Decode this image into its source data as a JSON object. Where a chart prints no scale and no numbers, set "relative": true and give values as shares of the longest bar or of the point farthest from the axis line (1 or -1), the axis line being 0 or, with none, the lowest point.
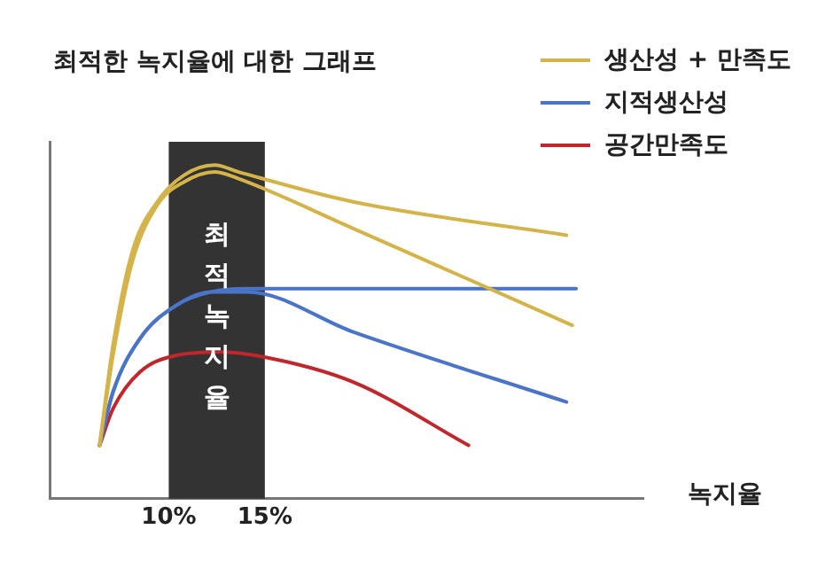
{
  "chart_data": {
    "type": "line",
    "title": "최적한 녹지율에 대한 그래프",
    "xlabel": "녹지율",
    "relative": true,
    "xlim": [
      3.8,
      34.7
    ],
    "xticks": [
      {
        "value": 10,
        "label": "10%"
      },
      {
        "value": 15,
        "label": "15%"
      }
    ],
    "tick_labels": "x",
    "grid": false,
    "legend": "top right",
    "marker": "none",
    "line_style": "solid",
    "bands": [
      {
        "axis": "x",
        "from": 10,
        "to": 15,
        "label": "최적 녹지율",
        "color": "#333333"
      }
    ],
    "series": [
      {
        "name": "생산성 + 만족도",
        "color": "#d4b44a",
        "x": [
          6.4,
          7.1,
          8.1,
          9.4,
          10.8,
          12.4,
          13.6,
          19.6,
          30.7
        ],
        "values": [
          0.16,
          0.46,
          0.74,
          0.89,
          0.97,
          1.0,
          0.98,
          0.89,
          0.79
        ]
      },
      {
        "color": "#d4b44a",
        "x": [
          6.4,
          7.1,
          8.1,
          9.4,
          10.8,
          12.4,
          13.6,
          19.6,
          31
        ],
        "values": [
          0.16,
          0.43,
          0.71,
          0.88,
          0.95,
          0.98,
          0.96,
          0.81,
          0.52
        ]
      },
      {
        "name": "지적생산성",
        "color": "#4a74c8",
        "x": [
          6.4,
          7.1,
          8.5,
          10.4,
          12.2,
          14.1,
          31.2
        ],
        "values": [
          0.16,
          0.32,
          0.48,
          0.58,
          0.62,
          0.63,
          0.63
        ]
      },
      {
        "color": "#4a74c8",
        "x": [
          6.4,
          7.1,
          8.5,
          10.4,
          12.2,
          14.1,
          19.6,
          30.7
        ],
        "values": [
          0.16,
          0.32,
          0.48,
          0.58,
          0.62,
          0.62,
          0.5,
          0.29
        ]
      },
      {
        "name": "공간만족도",
        "color": "#c0272d",
        "x": [
          6.4,
          7.1,
          8.5,
          10.4,
          12.7,
          14.5,
          19.6,
          25.6
        ],
        "values": [
          0.16,
          0.27,
          0.38,
          0.43,
          0.44,
          0.43,
          0.35,
          0.16
        ]
      }
    ]
  }
}
